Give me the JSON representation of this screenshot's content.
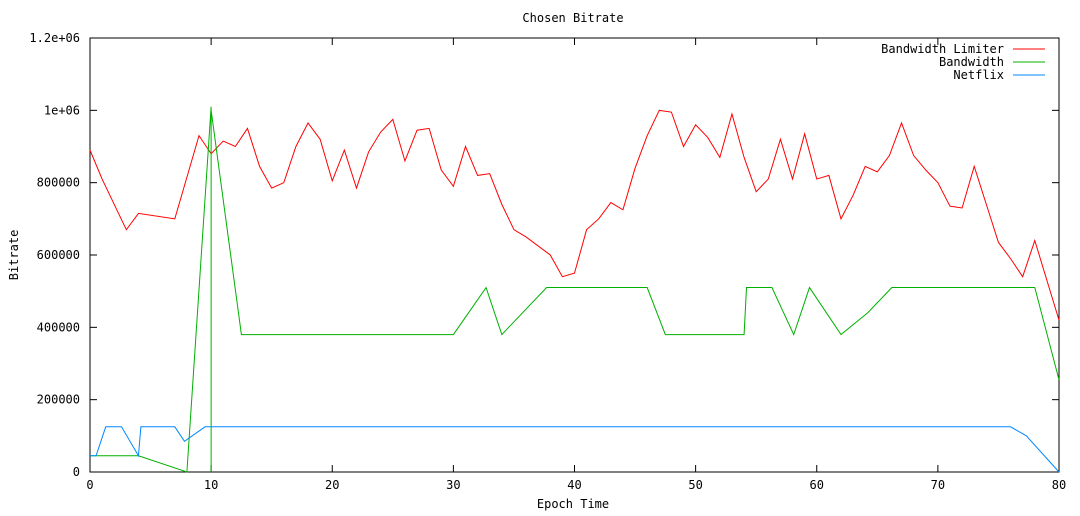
{
  "chart_data": {
    "type": "line",
    "title": "Chosen Bitrate",
    "xlabel": "Epoch Time",
    "ylabel": "Bitrate",
    "xlim": [
      0,
      80
    ],
    "ylim": [
      0,
      1200000
    ],
    "x_ticks": [
      0,
      10,
      20,
      30,
      40,
      50,
      60,
      70,
      80
    ],
    "x_tick_labels": [
      "0",
      "10",
      "20",
      "30",
      "40",
      "50",
      "60",
      "70",
      "80"
    ],
    "y_ticks": [
      0,
      200000,
      400000,
      600000,
      800000,
      1000000,
      1200000
    ],
    "y_tick_labels": [
      "0",
      "200000",
      "400000",
      "600000",
      "800000",
      "1e+06",
      "1.2e+06"
    ],
    "grid": false,
    "legend_position": "top-right",
    "series": [
      {
        "name": "Bandwidth Limiter",
        "color": "#ff0000",
        "points": [
          [
            0,
            890000
          ],
          [
            1,
            810000
          ],
          [
            3,
            670000
          ],
          [
            4,
            715000
          ],
          [
            7,
            700000
          ],
          [
            9,
            930000
          ],
          [
            10,
            880000
          ],
          [
            11,
            915000
          ],
          [
            12,
            900000
          ],
          [
            13,
            950000
          ],
          [
            14,
            845000
          ],
          [
            15,
            785000
          ],
          [
            16,
            800000
          ],
          [
            17,
            900000
          ],
          [
            18,
            965000
          ],
          [
            19,
            920000
          ],
          [
            20,
            805000
          ],
          [
            21,
            890000
          ],
          [
            22,
            785000
          ],
          [
            23,
            885000
          ],
          [
            24,
            940000
          ],
          [
            25,
            975000
          ],
          [
            26,
            860000
          ],
          [
            27,
            945000
          ],
          [
            28,
            950000
          ],
          [
            29,
            835000
          ],
          [
            30,
            790000
          ],
          [
            31,
            900000
          ],
          [
            32,
            820000
          ],
          [
            33,
            825000
          ],
          [
            34,
            740000
          ],
          [
            35,
            670000
          ],
          [
            36,
            650000
          ],
          [
            38,
            600000
          ],
          [
            39,
            540000
          ],
          [
            40,
            550000
          ],
          [
            41,
            670000
          ],
          [
            42,
            700000
          ],
          [
            43,
            745000
          ],
          [
            44,
            725000
          ],
          [
            45,
            840000
          ],
          [
            46,
            930000
          ],
          [
            47,
            1000000
          ],
          [
            48,
            995000
          ],
          [
            49,
            900000
          ],
          [
            50,
            960000
          ],
          [
            51,
            925000
          ],
          [
            52,
            870000
          ],
          [
            53,
            990000
          ],
          [
            54,
            870000
          ],
          [
            55,
            775000
          ],
          [
            56,
            810000
          ],
          [
            57,
            920000
          ],
          [
            58,
            810000
          ],
          [
            59,
            935000
          ],
          [
            60,
            810000
          ],
          [
            61,
            820000
          ],
          [
            62,
            700000
          ],
          [
            63,
            765000
          ],
          [
            64,
            845000
          ],
          [
            65,
            830000
          ],
          [
            66,
            875000
          ],
          [
            67,
            965000
          ],
          [
            68,
            875000
          ],
          [
            69,
            835000
          ],
          [
            70,
            800000
          ],
          [
            71,
            735000
          ],
          [
            72,
            730000
          ],
          [
            73,
            845000
          ],
          [
            74,
            740000
          ],
          [
            75,
            635000
          ],
          [
            76,
            590000
          ],
          [
            77,
            540000
          ],
          [
            78,
            640000
          ],
          [
            80,
            420000
          ]
        ]
      },
      {
        "name": "Bandwidth",
        "color": "#00b000",
        "points": [
          [
            0,
            45000
          ],
          [
            4,
            45000
          ],
          [
            8,
            0
          ],
          [
            10,
            1010000
          ],
          [
            10,
            0
          ],
          [
            10,
            1000000
          ],
          [
            12.5,
            380000
          ],
          [
            30,
            380000
          ],
          [
            32.7,
            510000
          ],
          [
            34,
            380000
          ],
          [
            37.7,
            510000
          ],
          [
            46,
            510000
          ],
          [
            47.5,
            380000
          ],
          [
            54,
            380000
          ],
          [
            54.2,
            510000
          ],
          [
            56.3,
            510000
          ],
          [
            58.1,
            380000
          ],
          [
            59.4,
            510000
          ],
          [
            62,
            380000
          ],
          [
            64.2,
            440000
          ],
          [
            66.2,
            510000
          ],
          [
            78,
            510000
          ],
          [
            80,
            255000
          ]
        ]
      },
      {
        "name": "Netflix",
        "color": "#0088ff",
        "points": [
          [
            0,
            45000
          ],
          [
            0.5,
            45000
          ],
          [
            1.3,
            125000
          ],
          [
            2.6,
            125000
          ],
          [
            4,
            45000
          ],
          [
            4.2,
            125000
          ],
          [
            7,
            125000
          ],
          [
            7.8,
            85000
          ],
          [
            9.5,
            125000
          ],
          [
            76,
            125000
          ],
          [
            77.3,
            100000
          ],
          [
            80,
            0
          ]
        ]
      }
    ]
  }
}
